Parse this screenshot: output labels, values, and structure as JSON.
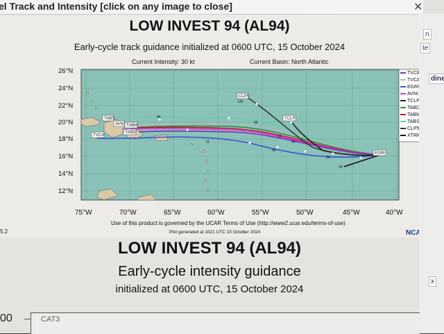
{
  "window": {
    "title": "el Track and Intensity [click on any image to close]",
    "close_glyph": "✕"
  },
  "side_tabs": [
    "n",
    "te",
    "dine",
    "x"
  ],
  "track_panel": {
    "title": "LOW INVEST 94 (AL94)",
    "subtitle": "Early-cycle track guidance initialized at 0600 UTC, 15 October 2024",
    "current_intensity": "Current Intensity: 30 kt",
    "current_basin": "Current Basin: North Atlantic",
    "lat_labels": [
      "26°N",
      "24°N",
      "22°N",
      "20°N",
      "18°N",
      "16°N",
      "14°N",
      "12°N"
    ],
    "lon_labels": [
      "75°W",
      "70°W",
      "65°W",
      "60°W",
      "55°W",
      "50°W",
      "45°W",
      "40°W"
    ],
    "footer_terms": "Use of this product is governed by the UCAR Terms of Use (http://www2.ucar.edu/terms-of-use)",
    "footer_generated": "Plot generated at 1021 UTC   15 October 2024",
    "version": "5.2",
    "logo_text": "NCA",
    "legend": [
      {
        "name": "TVCE",
        "color": "#7b2fbe"
      },
      {
        "name": "TVCA",
        "color": "#b7b7b7"
      },
      {
        "name": "EGRI",
        "color": "#3a4fd0"
      },
      {
        "name": "AVNI",
        "color": "#d93bd2"
      },
      {
        "name": "TCLP",
        "color": "#222222"
      },
      {
        "name": "TABD",
        "color": "#2e8b3c"
      },
      {
        "name": "TABM",
        "color": "#c8102e"
      },
      {
        "name": "TABS",
        "color": "#66ccaa"
      },
      {
        "name": "CLP5",
        "color": "#333333"
      },
      {
        "name": "XTRP",
        "color": "#111111"
      }
    ],
    "track_labels": [
      "TABS",
      "TVCA",
      "AVN",
      "TABM",
      "TABD",
      "CLP5",
      "TCLP",
      "EGRI"
    ],
    "hour_labels": [
      "96",
      "120",
      "72",
      "48",
      "24",
      "96",
      "72",
      "48",
      "24"
    ]
  },
  "intensity_panel": {
    "title": "LOW INVEST 94 (AL94)",
    "subtitle": "Early-cycle intensity guidance",
    "init": "initialized at 0600 UTC, 15 October 2024",
    "axis_value": "00",
    "cat_label": "CAT3"
  }
}
